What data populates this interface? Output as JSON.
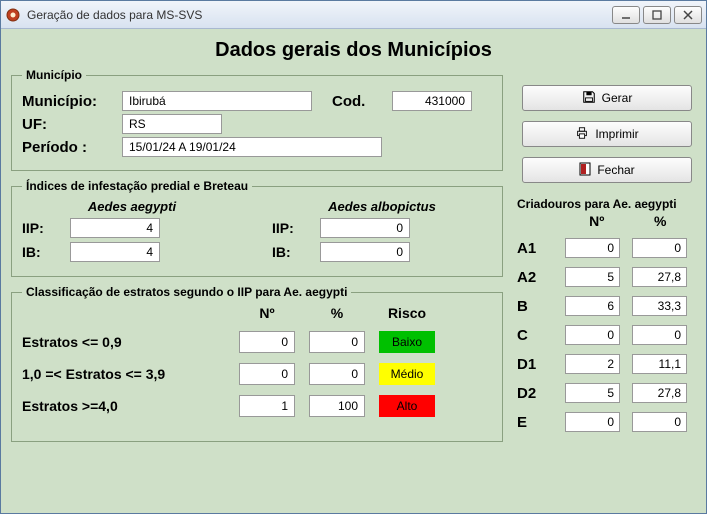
{
  "window": {
    "title": "Geração de dados para MS-SVS"
  },
  "page_title": "Dados gerais dos Municípios",
  "buttons": {
    "gerar": "Gerar",
    "imprimir": "Imprimir",
    "fechar": "Fechar"
  },
  "municipio": {
    "legend": "Município",
    "municipio_label": "Município:",
    "municipio_value": "Ibirubá",
    "cod_label": "Cod.",
    "cod_value": "431000",
    "uf_label": "UF:",
    "uf_value": "RS",
    "periodo_label": "Período :",
    "periodo_value": "15/01/24 A 19/01/24"
  },
  "indices": {
    "legend": "Índices de infestação predial e Breteau",
    "col1_title": "Aedes aegypti",
    "col2_title": "Aedes albopictus",
    "iip_label": "IIP:",
    "ib_label": "IB:",
    "aegypti": {
      "iip": "4",
      "ib": "4"
    },
    "albopictus": {
      "iip": "0",
      "ib": "0"
    }
  },
  "classificacao": {
    "legend": "Classificação de estratos segundo o IIP para Ae. aegypti",
    "head_n": "Nº",
    "head_p": "%",
    "head_risco": "Risco",
    "rows": [
      {
        "label": "Estratos <= 0,9",
        "n": "0",
        "p": "0",
        "risco": "Baixo",
        "risco_class": "risk-baixo"
      },
      {
        "label": "1,0 =< Estratos <= 3,9",
        "n": "0",
        "p": "0",
        "risco": "Médio",
        "risco_class": "risk-medio"
      },
      {
        "label": "Estratos >=4,0",
        "n": "1",
        "p": "100",
        "risco": "Alto",
        "risco_class": "risk-alto"
      }
    ]
  },
  "criadouros": {
    "title": "Criadouros para Ae. aegypti",
    "head_n": "Nº",
    "head_p": "%",
    "rows": [
      {
        "k": "A1",
        "n": "0",
        "p": "0"
      },
      {
        "k": "A2",
        "n": "5",
        "p": "27,8"
      },
      {
        "k": "B",
        "n": "6",
        "p": "33,3"
      },
      {
        "k": "C",
        "n": "0",
        "p": "0"
      },
      {
        "k": "D1",
        "n": "2",
        "p": "11,1"
      },
      {
        "k": "D2",
        "n": "5",
        "p": "27,8"
      },
      {
        "k": "E",
        "n": "0",
        "p": "0"
      }
    ]
  },
  "colors": {
    "panel_bg": "#cfe0c8",
    "risk_baixo": "#00c000",
    "risk_medio": "#ffff00",
    "risk_alto": "#ff0000"
  }
}
